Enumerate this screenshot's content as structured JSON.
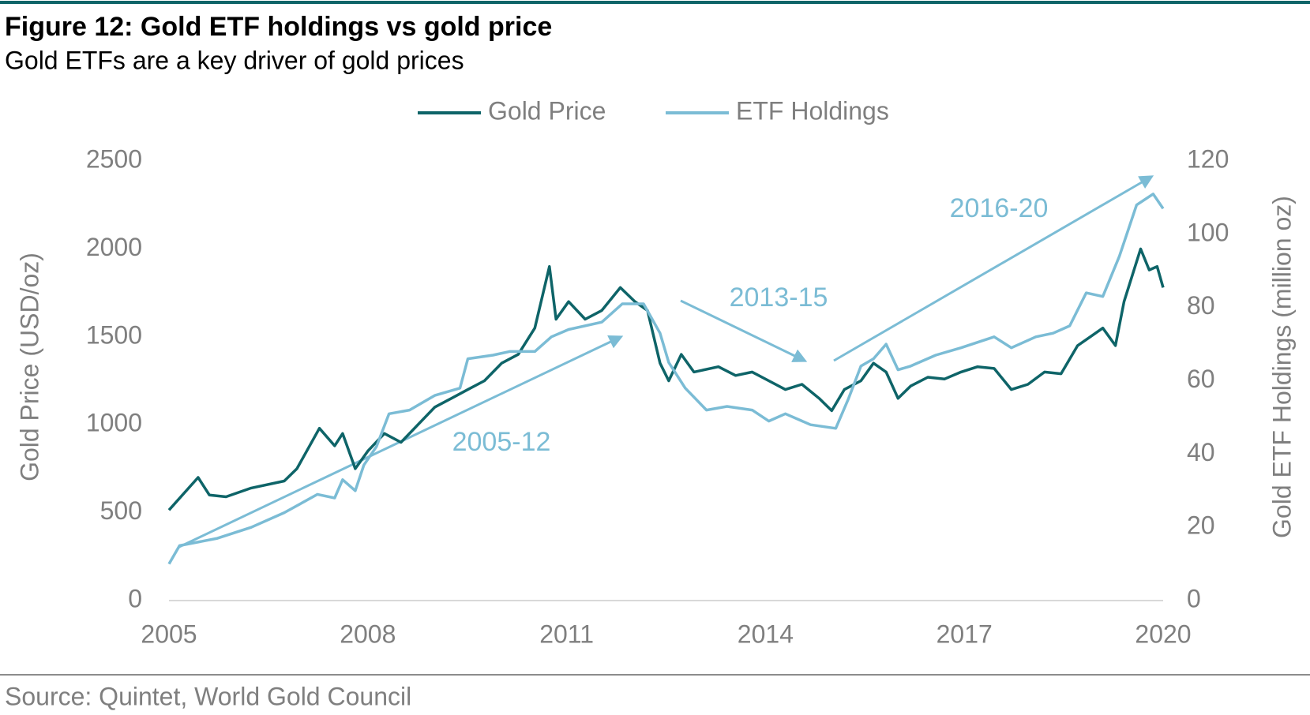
{
  "chart_data": {
    "type": "line",
    "title": "Figure 12: Gold ETF holdings vs gold price",
    "subtitle": "Gold ETFs are a key driver of gold prices",
    "ylabel": "Gold Price (USD/oz)",
    "y2label": "Gold ETF Holdings (million oz)",
    "source": "Source: Quintet, World Gold Council",
    "annotations": [
      "2005-12",
      "2013-15",
      "2016-20"
    ],
    "xlim": [
      2005,
      2020
    ],
    "xticks": [
      2005,
      2008,
      2011,
      2014,
      2017,
      2020
    ],
    "ylim": [
      0,
      2500
    ],
    "yticks": [
      0,
      500,
      1000,
      1500,
      2000,
      2500
    ],
    "y2lim": [
      0,
      120
    ],
    "y2ticks": [
      0,
      20,
      40,
      60,
      80,
      100,
      120
    ],
    "grid": false,
    "legend": "top",
    "series": [
      {
        "name": "Gold Price",
        "color": "#0e6468",
        "x": [
          2005.0,
          2005.44,
          2005.61,
          2005.86,
          2006.24,
          2006.74,
          2006.93,
          2007.27,
          2007.5,
          2007.62,
          2007.81,
          2008.0,
          2008.25,
          2008.5,
          2009.01,
          2009.26,
          2009.51,
          2009.76,
          2010.02,
          2010.27,
          2010.52,
          2010.74,
          2010.84,
          2011.03,
          2011.28,
          2011.53,
          2011.81,
          2012.03,
          2012.22,
          2012.41,
          2012.54,
          2012.73,
          2012.92,
          2013.29,
          2013.55,
          2013.8,
          2014.05,
          2014.3,
          2014.55,
          2014.81,
          2015.0,
          2015.19,
          2015.44,
          2015.63,
          2015.82,
          2016.0,
          2016.19,
          2016.45,
          2016.7,
          2016.95,
          2017.2,
          2017.45,
          2017.71,
          2017.96,
          2018.21,
          2018.46,
          2018.71,
          2018.9,
          2019.09,
          2019.28,
          2019.41,
          2019.66,
          2019.79,
          2019.91,
          2020.0
        ],
        "values": [
          515,
          700,
          600,
          590,
          640,
          680,
          750,
          980,
          880,
          950,
          750,
          850,
          950,
          900,
          1100,
          1150,
          1200,
          1250,
          1350,
          1400,
          1550,
          1900,
          1600,
          1700,
          1600,
          1650,
          1780,
          1700,
          1650,
          1350,
          1250,
          1400,
          1300,
          1330,
          1280,
          1300,
          1250,
          1200,
          1230,
          1150,
          1080,
          1200,
          1250,
          1350,
          1300,
          1150,
          1220,
          1270,
          1260,
          1300,
          1330,
          1320,
          1200,
          1230,
          1300,
          1290,
          1450,
          1500,
          1550,
          1450,
          1700,
          2000,
          1880,
          1900,
          1780
        ]
      },
      {
        "name": "ETF Holdings",
        "color": "#7bbcd5",
        "axis": "y2",
        "x": [
          2005.0,
          2005.16,
          2005.73,
          2006.24,
          2006.74,
          2007.24,
          2007.5,
          2007.62,
          2007.81,
          2007.94,
          2008.13,
          2008.32,
          2008.63,
          2009.01,
          2009.39,
          2009.51,
          2009.89,
          2010.14,
          2010.52,
          2010.77,
          2011.03,
          2011.53,
          2011.84,
          2012.16,
          2012.41,
          2012.54,
          2012.79,
          2013.11,
          2013.42,
          2013.8,
          2014.05,
          2014.3,
          2014.68,
          2015.06,
          2015.25,
          2015.44,
          2015.63,
          2015.82,
          2016.0,
          2016.19,
          2016.57,
          2016.95,
          2017.45,
          2017.71,
          2018.08,
          2018.34,
          2018.59,
          2018.84,
          2019.09,
          2019.34,
          2019.6,
          2019.85,
          2020.0
        ],
        "values": [
          10,
          15,
          17,
          20,
          24,
          29,
          28,
          33,
          30,
          37,
          42,
          51,
          52,
          56,
          58,
          66,
          67,
          68,
          68,
          72,
          74,
          76,
          81,
          81,
          73,
          65,
          58,
          52,
          53,
          52,
          49,
          51,
          48,
          47,
          55,
          64,
          66,
          70,
          63,
          64,
          67,
          69,
          72,
          69,
          72,
          73,
          75,
          84,
          83,
          94,
          108,
          111,
          107
        ]
      }
    ]
  }
}
